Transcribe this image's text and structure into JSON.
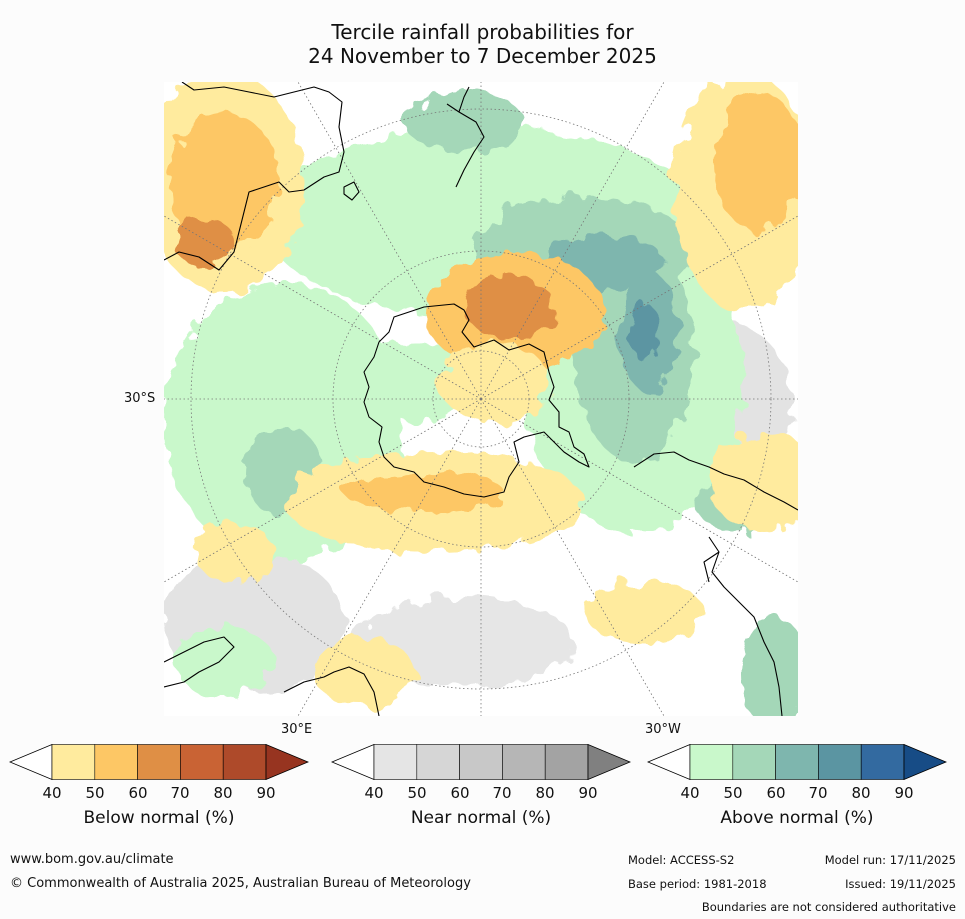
{
  "title": {
    "line1": "Tercile rainfall probabilities for",
    "line2": "24 November to 7 December 2025"
  },
  "map": {
    "projection": "south-polar",
    "lat_label_west": "30°S",
    "lon_label_left": "30°E",
    "lon_label_right": "30°W"
  },
  "colorbars": [
    {
      "label": "Below normal (%)",
      "ticks": [
        "40",
        "50",
        "60",
        "70",
        "80",
        "90"
      ],
      "colors": [
        "#ffffff",
        "#ffeb9e",
        "#fdc765",
        "#df8f45",
        "#c96334",
        "#ae4a2a",
        "#973420"
      ]
    },
    {
      "label": "Near normal (%)",
      "ticks": [
        "40",
        "50",
        "60",
        "70",
        "80",
        "90"
      ],
      "colors": [
        "#ffffff",
        "#e5e5e5",
        "#d6d6d6",
        "#c8c8c8",
        "#b6b6b6",
        "#a3a3a3",
        "#808080"
      ]
    },
    {
      "label": "Above normal (%)",
      "ticks": [
        "40",
        "50",
        "60",
        "70",
        "80",
        "90"
      ],
      "colors": [
        "#ffffff",
        "#c9f8cb",
        "#a4d7b8",
        "#7eb6ae",
        "#5b95a2",
        "#336aa0",
        "#174c86"
      ]
    }
  ],
  "footer": {
    "website": "www.bom.gov.au/climate",
    "copyright": "© Commonwealth of Australia 2025, Australian Bureau of Meteorology",
    "model": "Model: ACCESS-S2",
    "base_period": "Base period: 1981-2018",
    "model_run": "Model run: 17/11/2025",
    "issued": "Issued: 19/11/2025",
    "disclaimer": "Boundaries are not considered authoritative"
  }
}
